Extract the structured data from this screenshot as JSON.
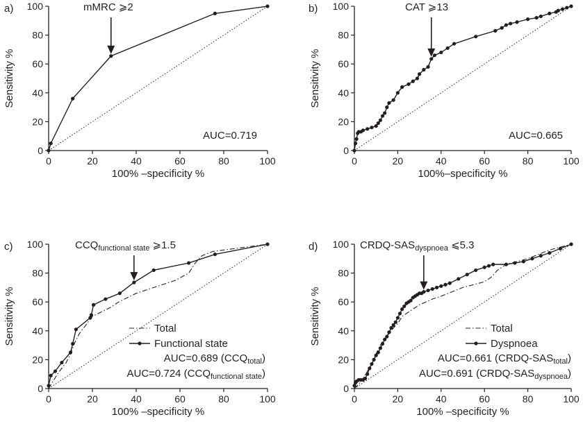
{
  "chart_data": [
    {
      "type": "line",
      "panel_label": "a)",
      "xlabel": "100% –specificity %",
      "ylabel": "Sensitivity %",
      "xlim": [
        0,
        100
      ],
      "ylim": [
        0,
        100
      ],
      "xticks": [
        "0",
        "20",
        "40",
        "60",
        "80",
        "100"
      ],
      "yticks": [
        "0",
        "20",
        "40",
        "60",
        "80",
        "100"
      ],
      "reference_line": "diagonal-dotted",
      "annotation": {
        "prefix": "mMRC ⩾2",
        "sub": "",
        "suffix": "",
        "arrow_x": 28.5,
        "arrow_y": 65.5
      },
      "auc_lines": [
        {
          "prefix": "AUC=0.719",
          "sub": "",
          "suffix": ""
        }
      ],
      "legend": [],
      "series": [
        {
          "style": "solid-markers",
          "x": [
            0,
            1,
            11,
            28.5,
            76,
            100
          ],
          "y": [
            0,
            5,
            36,
            65.5,
            95,
            100
          ]
        }
      ]
    },
    {
      "type": "line",
      "panel_label": "b)",
      "xlabel": "100%–specificity %",
      "ylabel": "Sensitivity %",
      "xlim": [
        0,
        100
      ],
      "ylim": [
        0,
        100
      ],
      "xticks": [
        "0",
        "20",
        "40",
        "60",
        "80",
        "100"
      ],
      "yticks": [
        "0",
        "20",
        "40",
        "60",
        "80",
        "100"
      ],
      "reference_line": "diagonal-dotted",
      "annotation": {
        "prefix": "CAT ⩾13",
        "sub": "",
        "suffix": "",
        "arrow_x": 35.5,
        "arrow_y": 63.5
      },
      "auc_lines": [
        {
          "prefix": "AUC=0.665",
          "sub": "",
          "suffix": ""
        }
      ],
      "legend": [],
      "series": [
        {
          "style": "solid-markers",
          "x": [
            0,
            0.5,
            1,
            1.5,
            2,
            3,
            4,
            6,
            8,
            10,
            11,
            12,
            13,
            14,
            15,
            16,
            18,
            20,
            22,
            25,
            27,
            29,
            30,
            32,
            34,
            35.5,
            37,
            40,
            43,
            46,
            56,
            65,
            68,
            70,
            72,
            75,
            80,
            84,
            86,
            90,
            93,
            94,
            96,
            98,
            100
          ],
          "y": [
            0,
            5,
            8,
            12,
            13,
            13,
            14,
            15,
            16,
            17,
            19,
            21,
            24,
            26,
            30,
            33,
            35,
            40,
            44,
            46,
            48,
            50,
            53,
            56,
            58,
            63.5,
            66,
            68,
            71,
            74,
            79,
            83,
            85,
            87,
            88,
            89,
            91,
            92,
            93,
            95,
            96,
            97,
            98,
            99,
            100
          ]
        }
      ]
    },
    {
      "type": "line",
      "panel_label": "c)",
      "xlabel": "100% –specificity %",
      "ylabel": "Sensitivity %",
      "xlim": [
        0,
        100
      ],
      "ylim": [
        0,
        100
      ],
      "xticks": [
        "0",
        "20",
        "40",
        "60",
        "80",
        "100"
      ],
      "yticks": [
        "0",
        "20",
        "40",
        "60",
        "80",
        "100"
      ],
      "reference_line": "diagonal-dotted",
      "annotation": {
        "prefix": "CCQ",
        "sub": "functional state",
        "suffix": " ⩾1.5",
        "arrow_x": 39,
        "arrow_y": 73.5
      },
      "auc_lines": [
        {
          "prefix": "AUC=0.689 (CCQ",
          "sub": "total",
          "suffix": ")"
        },
        {
          "prefix": "AUC=0.724 (CCQ",
          "sub": "functional state",
          "suffix": ")"
        }
      ],
      "legend": [
        {
          "label": "Total",
          "style": "dashdot"
        },
        {
          "label": "Functional state",
          "style": "solid-markers"
        }
      ],
      "series": [
        {
          "name": "Total",
          "style": "dashdot",
          "x": [
            0,
            2,
            4,
            6,
            8,
            10,
            12,
            14,
            16,
            18,
            20,
            24,
            28,
            32,
            36,
            40,
            46,
            52,
            58,
            64,
            67,
            70,
            75,
            80,
            85,
            90,
            95,
            100
          ],
          "y": [
            0,
            5,
            10,
            14,
            18,
            24,
            32,
            38,
            42,
            46,
            50,
            53,
            56,
            60,
            63,
            66,
            69,
            72,
            75,
            80,
            87,
            92,
            95,
            96,
            97,
            98,
            99,
            100
          ]
        },
        {
          "name": "Functional state",
          "style": "solid-markers",
          "x": [
            0,
            1,
            3,
            6,
            10,
            11,
            12.5,
            19,
            19.5,
            20.5,
            26,
            32.5,
            39,
            48,
            64,
            76,
            100
          ],
          "y": [
            2,
            9,
            12,
            18,
            25,
            31,
            41,
            49,
            51,
            58,
            62,
            66,
            73.5,
            82,
            87,
            93,
            100
          ]
        }
      ]
    },
    {
      "type": "line",
      "panel_label": "d)",
      "xlabel": "100% –specificity %",
      "ylabel": "Sensitivity %",
      "xlim": [
        0,
        100
      ],
      "ylim": [
        0,
        100
      ],
      "xticks": [
        "0",
        "20",
        "40",
        "60",
        "80",
        "100"
      ],
      "yticks": [
        "0",
        "20",
        "40",
        "60",
        "80",
        "100"
      ],
      "reference_line": "diagonal-dotted",
      "annotation": {
        "prefix": "CRDQ-SAS",
        "sub": "dyspnoea",
        "suffix": " ⩽5.3",
        "arrow_x": 32,
        "arrow_y": 67
      },
      "auc_lines": [
        {
          "prefix": "AUC=0.661 (CRDQ-SAS",
          "sub": "total",
          "suffix": ")"
        },
        {
          "prefix": "AUC=0.691 (CRDQ-SAS",
          "sub": "dyspnoea",
          "suffix": ")"
        }
      ],
      "legend": [
        {
          "label": "Total",
          "style": "dashdot"
        },
        {
          "label": "Dyspnoea",
          "style": "solid-markers"
        }
      ],
      "series": [
        {
          "name": "Total",
          "style": "dashdot",
          "x": [
            0,
            2,
            4,
            6,
            8,
            10,
            12,
            14,
            16,
            18,
            20,
            22,
            24,
            26,
            28,
            30,
            33,
            36,
            40,
            45,
            50,
            55,
            60,
            63,
            66,
            70,
            75,
            80,
            85,
            90,
            95,
            100
          ],
          "y": [
            0,
            3,
            7,
            12,
            17,
            24,
            30,
            35,
            38,
            42,
            45,
            50,
            52,
            54,
            56,
            58,
            60,
            62,
            64,
            67,
            70,
            72,
            74,
            77,
            82,
            86,
            88,
            90,
            93,
            96,
            98,
            100
          ]
        },
        {
          "name": "Dyspnoea",
          "style": "solid-markers",
          "x": [
            0,
            0.5,
            1,
            2,
            3,
            4,
            5,
            6,
            7,
            8,
            9,
            10,
            11,
            12,
            13,
            14,
            15,
            16,
            17,
            18,
            19,
            20,
            21,
            22,
            23,
            24,
            25,
            26,
            27,
            28,
            29,
            30,
            31,
            32,
            34,
            36,
            38,
            40,
            42,
            44,
            48,
            52,
            56,
            60,
            62,
            64,
            70,
            74,
            78,
            82,
            86,
            90,
            95,
            100
          ],
          "y": [
            2,
            4,
            5,
            6,
            6,
            6,
            7,
            10,
            14,
            17,
            20,
            23,
            25,
            28,
            31,
            34,
            36,
            39,
            42,
            44,
            46,
            49,
            52,
            55,
            57,
            59,
            60,
            61,
            63,
            64,
            65,
            66,
            66,
            67,
            68,
            69,
            70,
            71,
            72,
            73,
            76,
            79,
            82,
            84,
            85,
            86,
            86,
            87,
            88,
            90,
            92,
            94,
            97,
            100
          ]
        }
      ]
    }
  ]
}
